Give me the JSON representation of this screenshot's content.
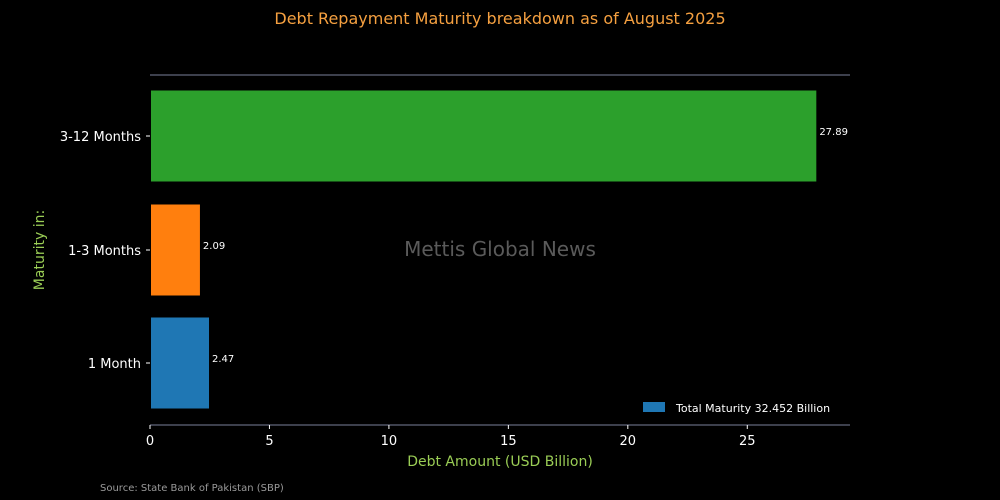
{
  "colors": {
    "background": "#000000",
    "title": "#f5a040",
    "axis_label": "#9acd55",
    "axis_line": "#7a7f9a",
    "tick_text": "#ffffff",
    "bar_label": "#ffffff",
    "watermark": "#5a5a5a",
    "source_text": "#9a9a9a"
  },
  "chart_data": {
    "type": "bar",
    "orientation": "horizontal",
    "title": "Debt Repayment Maturity breakdown as of August 2025",
    "xlabel": "Debt Amount (USD Billion)",
    "ylabel": "Maturity in:",
    "categories": [
      "1 Month",
      "1-3 Months",
      "3-12 Months"
    ],
    "values": [
      2.47,
      2.09,
      27.89
    ],
    "value_labels": [
      "2.47",
      "2.09",
      "27.89"
    ],
    "bar_colors": [
      "#1f77b4",
      "#ff7f0e",
      "#2ca02c"
    ],
    "xlim": [
      0,
      29.3
    ],
    "xticks": [
      0,
      5,
      10,
      15,
      20,
      25
    ],
    "xtick_labels": [
      "0",
      "5",
      "10",
      "15",
      "20",
      "25"
    ],
    "grid": false,
    "legend": {
      "placement": "lower-right",
      "entries": [
        {
          "label": "Total Maturity 32.452 Billion",
          "color": "#1f77b4"
        }
      ]
    },
    "watermark": "Mettis Global News",
    "source": "Source: State Bank of Pakistan (SBP)"
  }
}
